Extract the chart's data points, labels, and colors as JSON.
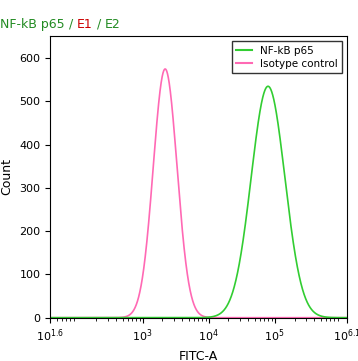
{
  "title_text": "NF-kB p65 / E1 / E2",
  "title_parts": [
    {
      "text": "NF-kB p65",
      "color": "#228B22"
    },
    {
      "text": " / ",
      "color": "#228B22"
    },
    {
      "text": "E1",
      "color": "#cc0000"
    },
    {
      "text": " / ",
      "color": "#228B22"
    },
    {
      "text": "E2",
      "color": "#228B22"
    }
  ],
  "xlabel": "FITC-A",
  "ylabel": "Count",
  "xlim_low_exp": 1.6,
  "xlim_high_exp": 6.1,
  "ymin": 0,
  "ymax": 651,
  "yticks": [
    0,
    100,
    200,
    300,
    400,
    500,
    600
  ],
  "xtick_exps": [
    1.6,
    3,
    4,
    5,
    6.1
  ],
  "isotype_peak_log": 3.342,
  "isotype_sigma": 0.18,
  "isotype_height": 575,
  "nfkb_peak_log": 4.9,
  "nfkb_sigma": 0.255,
  "nfkb_height": 535,
  "isotype_color": "#FF69B4",
  "nfkb_color": "#32CD32",
  "legend_nfkb": "NF-kB p65",
  "legend_isotype": "Isotype control",
  "title_fontsize": 9,
  "axis_label_fontsize": 9,
  "tick_fontsize": 8,
  "legend_fontsize": 7.5
}
